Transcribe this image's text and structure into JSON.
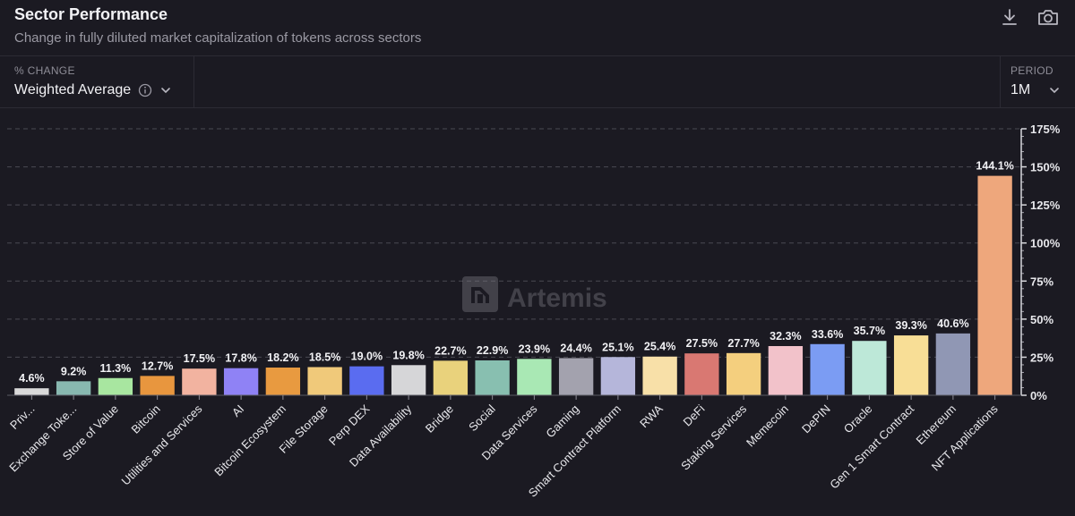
{
  "header": {
    "title": "Sector Performance",
    "subtitle": "Change in fully diluted market capitalization of tokens across sectors",
    "download_icon": "download-icon",
    "camera_icon": "camera-icon"
  },
  "controls": {
    "metric_label": "% CHANGE",
    "metric_value": "Weighted Average",
    "info_icon": "info-icon",
    "period_label": "PERIOD",
    "period_value": "1M"
  },
  "watermark": "Artemis",
  "colors": {
    "background": "#1b1a22",
    "grid": "#4a4953"
  },
  "chart_data": {
    "type": "bar",
    "title": "",
    "xlabel": "",
    "ylabel": "",
    "ylim": [
      0,
      175
    ],
    "y_ticks": [
      0,
      25,
      50,
      75,
      100,
      125,
      150,
      175
    ],
    "y_tick_labels": [
      "0%",
      "25%",
      "50%",
      "75%",
      "100%",
      "125%",
      "150%",
      "175%"
    ],
    "y_axis_side": "right",
    "grid": true,
    "categories": [
      "Priv...",
      "Exchange Toke...",
      "Store of Value",
      "Bitcoin",
      "Utilities and Services",
      "AI",
      "Bitcoin Ecosystem",
      "File Storage",
      "Perp DEX",
      "Data Availability",
      "Bridge",
      "Social",
      "Data Services",
      "Gaming",
      "Smart Contract Platform",
      "RWA",
      "DeFi",
      "Staking Services",
      "Memecoin",
      "DePIN",
      "Oracle",
      "Gen 1 Smart Contract",
      "Ethereum",
      "NFT Applications"
    ],
    "values": [
      4.6,
      9.2,
      11.3,
      12.7,
      17.5,
      17.8,
      18.2,
      18.5,
      19.0,
      19.8,
      22.7,
      22.9,
      23.9,
      24.4,
      25.1,
      25.4,
      27.5,
      27.7,
      32.3,
      33.6,
      35.7,
      39.3,
      40.6,
      144.1
    ],
    "data_labels": [
      "4.6%",
      "9.2%",
      "11.3%",
      "12.7%",
      "17.5%",
      "17.8%",
      "18.2%",
      "18.5%",
      "19.0%",
      "19.8%",
      "22.7%",
      "22.9%",
      "23.9%",
      "24.4%",
      "25.1%",
      "25.4%",
      "27.5%",
      "27.7%",
      "32.3%",
      "33.6%",
      "35.7%",
      "39.3%",
      "40.6%",
      "144.1%"
    ],
    "bar_colors": [
      "#d9d9d9",
      "#88b8b0",
      "#a8e6a0",
      "#e8963e",
      "#f2b3a0",
      "#8f82f5",
      "#e89a40",
      "#f0c97a",
      "#5a6cf0",
      "#d6d6d8",
      "#e9d27c",
      "#88bfb0",
      "#a9e8b4",
      "#a3a2ae",
      "#b5b6da",
      "#f8e0a8",
      "#d97872",
      "#f4cf7e",
      "#f2c2ca",
      "#7b9cf3",
      "#bde8d8",
      "#f8de96",
      "#9097b4",
      "#eea77c"
    ]
  }
}
